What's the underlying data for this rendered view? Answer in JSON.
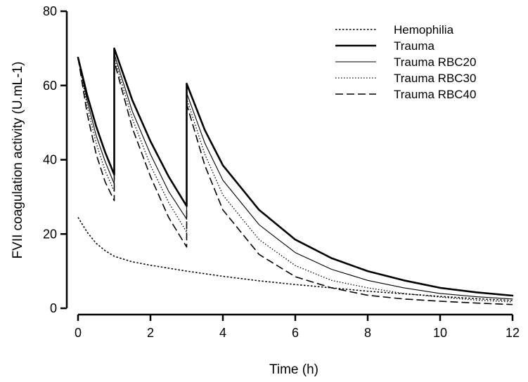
{
  "chart_data": {
    "type": "line",
    "title": "",
    "xlabel": "Time (h)",
    "ylabel": "FVII coagulation activity (U.mL-1)",
    "xlim": [
      0,
      12
    ],
    "ylim": [
      0,
      80
    ],
    "xticks": [
      "0",
      "2",
      "4",
      "6",
      "8",
      "10",
      "12"
    ],
    "yticks": [
      "0",
      "20",
      "40",
      "60",
      "80"
    ],
    "grid": false,
    "legend_position": "top-right",
    "series": [
      {
        "name": "Hemophilia",
        "style": "dotted-dense",
        "stroke_width": 1.6,
        "x": [
          0,
          0.25,
          0.5,
          0.75,
          1,
          1.5,
          2,
          3,
          4,
          5,
          6,
          7,
          8,
          9,
          10,
          11,
          12
        ],
        "y": [
          24.5,
          20.5,
          17.5,
          15.5,
          14.0,
          12.5,
          11.6,
          10.0,
          8.6,
          7.4,
          6.4,
          5.5,
          4.6,
          3.9,
          3.2,
          2.6,
          2.1
        ]
      },
      {
        "name": "Trauma",
        "style": "solid",
        "stroke_width": 2.6,
        "x": [
          0,
          0.25,
          0.5,
          0.75,
          1,
          1,
          1.5,
          2,
          2.5,
          3,
          3,
          3.5,
          4,
          5,
          6,
          7,
          8,
          9,
          10,
          11,
          12
        ],
        "y": [
          67.5,
          57.5,
          49.0,
          42.0,
          36.0,
          70.0,
          56.0,
          45.0,
          35.5,
          27.5,
          60.5,
          48.0,
          38.5,
          26.5,
          18.5,
          13.5,
          10.0,
          7.5,
          5.5,
          4.3,
          3.4
        ]
      },
      {
        "name": "Trauma RBC20",
        "style": "solid",
        "stroke_width": 1.1,
        "x": [
          0,
          0.25,
          0.5,
          0.75,
          1,
          1,
          1.5,
          2,
          2.5,
          3,
          3,
          3.5,
          4,
          5,
          6,
          7,
          8,
          9,
          10,
          11,
          12
        ],
        "y": [
          67.5,
          56.0,
          46.5,
          39.5,
          33.5,
          68.5,
          53.0,
          41.5,
          31.5,
          24.0,
          58.0,
          44.5,
          34.5,
          22.5,
          15.0,
          10.5,
          7.5,
          5.5,
          4.0,
          3.1,
          2.5
        ]
      },
      {
        "name": "Trauma RBC30",
        "style": "dotted",
        "stroke_width": 1.3,
        "x": [
          0,
          0.25,
          0.5,
          0.75,
          1,
          1,
          1.5,
          2,
          2.5,
          3,
          3,
          3.5,
          4,
          5,
          6,
          7,
          8,
          9,
          10,
          11,
          12
        ],
        "y": [
          67.5,
          54.5,
          44.5,
          37.0,
          31.5,
          67.5,
          51.0,
          38.5,
          28.5,
          20.5,
          56.5,
          41.5,
          30.5,
          18.5,
          11.5,
          7.5,
          5.5,
          4.0,
          3.0,
          2.2,
          1.7
        ]
      },
      {
        "name": "Trauma RBC40",
        "style": "dashed",
        "stroke_width": 1.6,
        "x": [
          0,
          0.25,
          0.5,
          0.75,
          1,
          1,
          1.5,
          2,
          2.5,
          3,
          3,
          3.5,
          4,
          5,
          6,
          7,
          8,
          9,
          10,
          11,
          12
        ],
        "y": [
          67.5,
          52.5,
          41.5,
          34.0,
          29.0,
          66.5,
          48.5,
          35.5,
          24.5,
          16.5,
          55.0,
          38.5,
          26.5,
          14.5,
          8.5,
          5.5,
          3.5,
          2.5,
          1.9,
          1.4,
          1.0
        ]
      }
    ]
  }
}
